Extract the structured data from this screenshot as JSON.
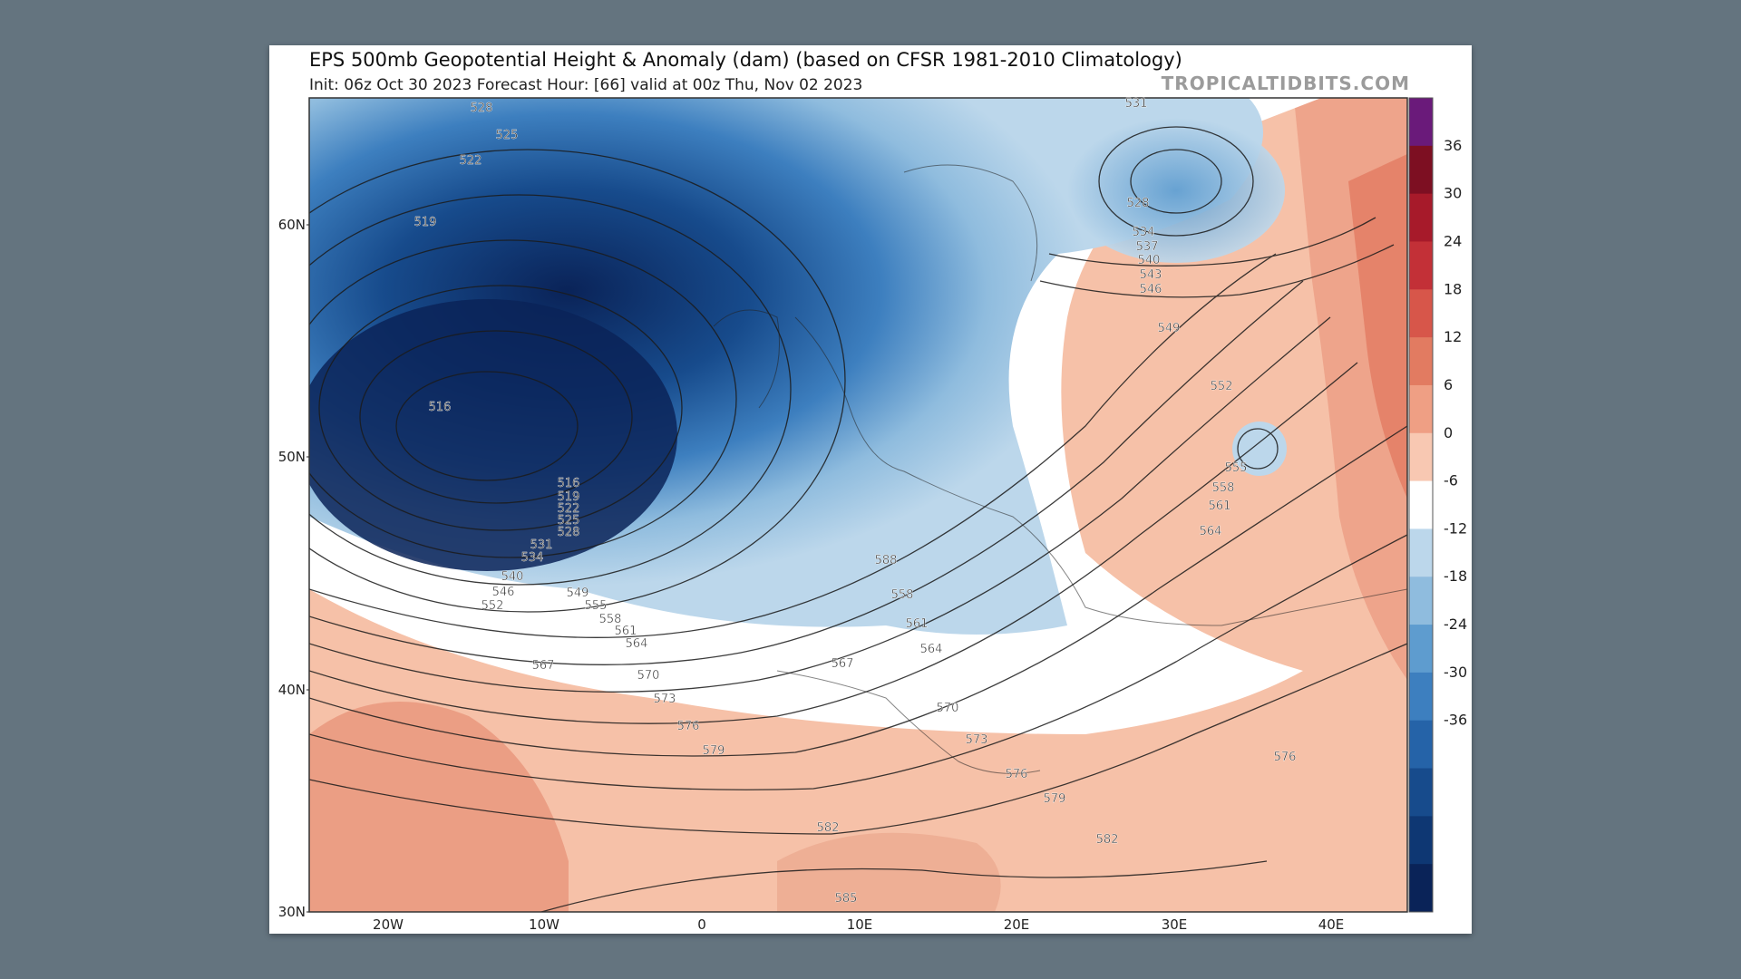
{
  "header": {
    "title": "EPS 500mb Geopotential Height & Anomaly (dam) (based on CFSR 1981-2010 Climatology)",
    "subtitle": "Init: 06z Oct 30 2023   Forecast Hour: [66]   valid at 00z Thu, Nov 02 2023",
    "watermark": "TROPICALTIDBITS.COM"
  },
  "axes": {
    "lat_labels": [
      "60N",
      "50N",
      "40N",
      "30N"
    ],
    "lon_labels": [
      "20W",
      "10W",
      "0",
      "10E",
      "20E",
      "30E",
      "40E"
    ]
  },
  "colorbar": {
    "ticks": [
      "36",
      "30",
      "24",
      "18",
      "12",
      "6",
      "0",
      "-6",
      "-12",
      "-18",
      "-24",
      "-30",
      "-36"
    ],
    "colors": [
      "#6a1a7a",
      "#7d0f22",
      "#a71a2a",
      "#c33037",
      "#d7564a",
      "#e27b61",
      "#ef9f84",
      "#f8c8b2",
      "#ffffff",
      "#bcd7eb",
      "#8fbcde",
      "#5e9ccf",
      "#3d7fbf",
      "#2563a8",
      "#174b8c",
      "#0e3773",
      "#0a2358"
    ]
  },
  "contour_labels": [
    "528",
    "525",
    "522",
    "519",
    "516",
    "516",
    "519",
    "522",
    "525",
    "528",
    "531",
    "534",
    "540",
    "546",
    "552",
    "549",
    "555",
    "558",
    "561",
    "564",
    "567",
    "570",
    "573",
    "576",
    "579",
    "582",
    "585",
    "588",
    "558",
    "561",
    "564",
    "567",
    "570",
    "573",
    "576",
    "579",
    "582",
    "531",
    "528",
    "534",
    "537",
    "540",
    "543",
    "546",
    "549",
    "552",
    "555",
    "558",
    "561",
    "564",
    "576"
  ],
  "colors": {
    "background": "#64747f",
    "panel": "#ffffff",
    "deep_low": "#0a2358",
    "warm_anomaly": "#ef9f84"
  }
}
